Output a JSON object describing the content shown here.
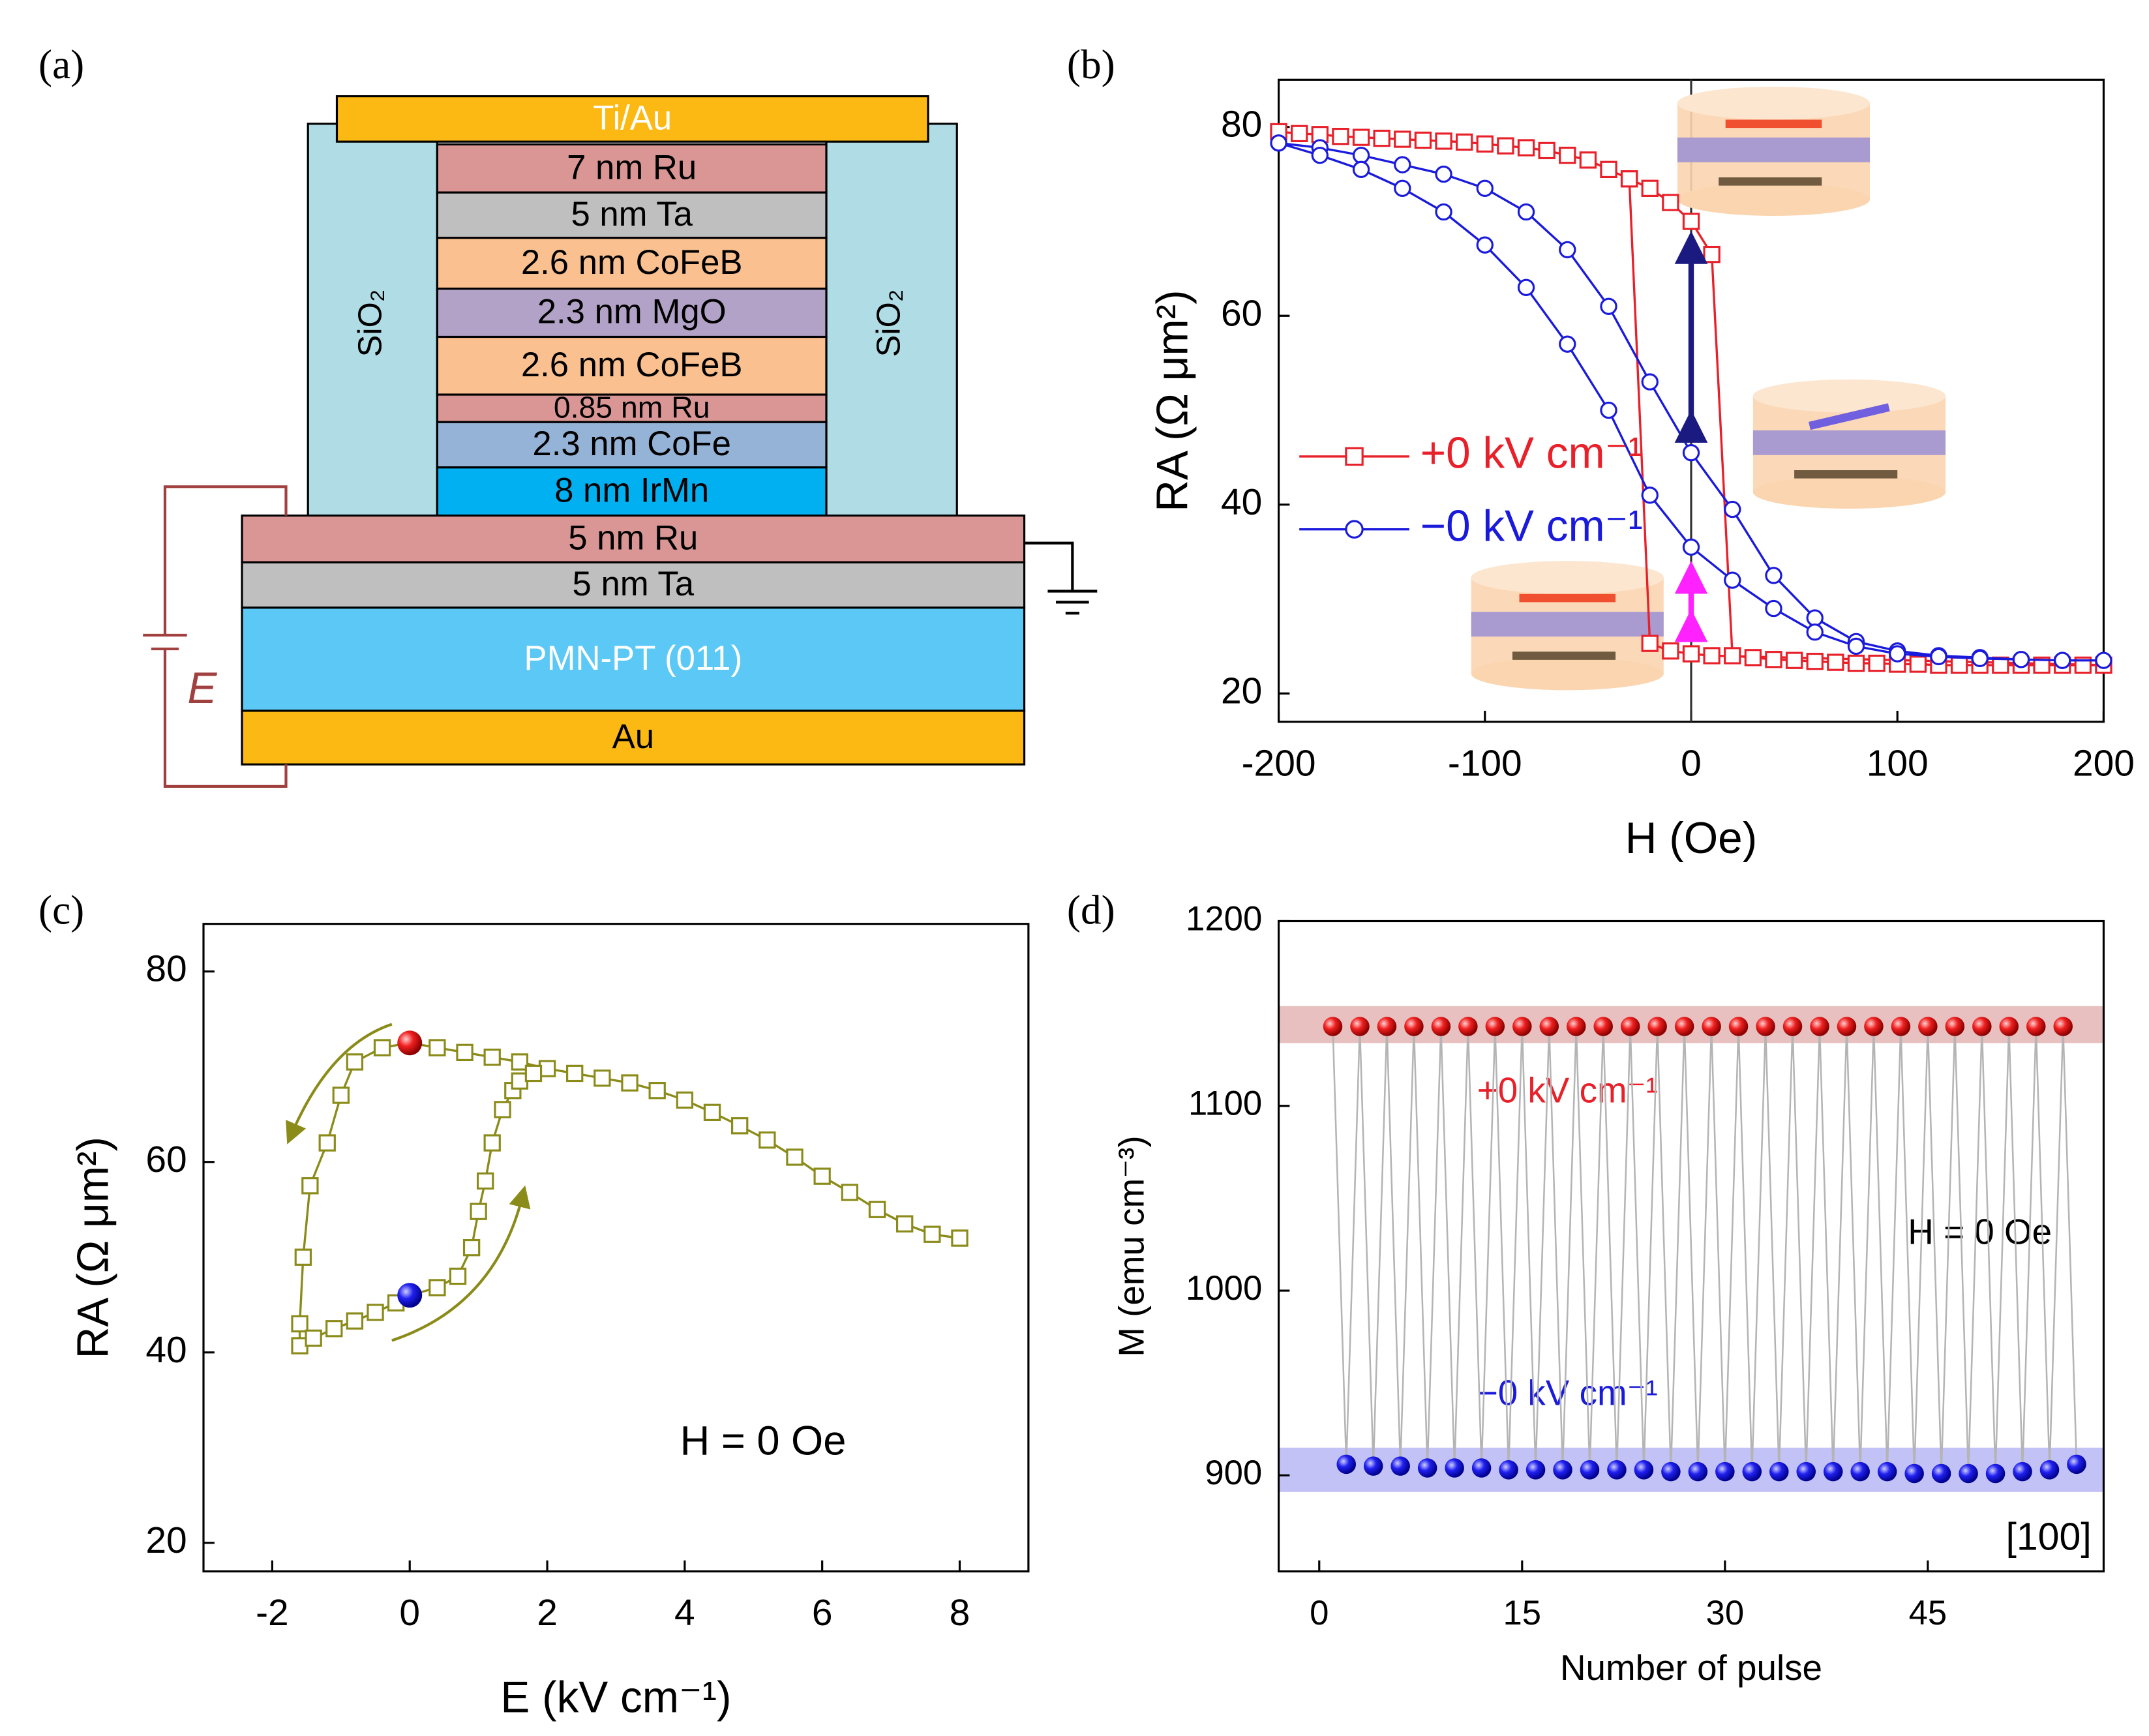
{
  "panel_labels": [
    "(a)",
    "(b)",
    "(c)",
    "(d)"
  ],
  "diagram": {
    "layers": [
      "Ti/Au",
      "7 nm Ru",
      "5 nm Ta",
      "2.6 nm  CoFeB",
      "2.3 nm MgO",
      "2.6 nm  CoFeB",
      "0.85 nm Ru",
      "2.3 nm CoFe",
      "8 nm IrMn",
      "5 nm Ru",
      "5 nm Ta",
      "PMN-PT (011)",
      "Au"
    ],
    "oxide": "SiO₂",
    "voltage_label": "E"
  },
  "chart_data": [
    {
      "type": "line",
      "xlabel": "H (Oe)",
      "ylabel": "RA (Ω μm²)",
      "xlim": [
        -200,
        200
      ],
      "ylim": [
        17,
        85
      ],
      "xticks": [
        -200,
        -100,
        0,
        100,
        200
      ],
      "yticks": [
        20,
        40,
        60,
        80
      ],
      "reference_line_x": 0,
      "legend": "center left",
      "series": [
        {
          "name": "+0 kV cm⁻¹",
          "color": "#e8202a",
          "marker": "square",
          "x": [
            -200,
            -190,
            -180,
            -170,
            -160,
            -150,
            -140,
            -130,
            -120,
            -110,
            -100,
            -90,
            -80,
            -70,
            -60,
            -50,
            -40,
            -30,
            -20,
            -10,
            0,
            10,
            20,
            30,
            40,
            50,
            60,
            70,
            80,
            90,
            100,
            110,
            120,
            130,
            140,
            150,
            160,
            170,
            180,
            190,
            200,
            10,
            0,
            -10,
            -20,
            -30
          ],
          "values": [
            79.5,
            79.3,
            79.2,
            79,
            78.9,
            78.8,
            78.7,
            78.6,
            78.5,
            78.4,
            78.2,
            78,
            77.8,
            77.5,
            77,
            76.5,
            75.5,
            74.5,
            73.5,
            72,
            70,
            66.5,
            24,
            23.8,
            23.6,
            23.5,
            23.4,
            23.3,
            23.2,
            23.2,
            23.1,
            23.1,
            23,
            23,
            23,
            23,
            23,
            23,
            23,
            23,
            23,
            24,
            24.2,
            24.5,
            25.3,
            74.5
          ]
        },
        {
          "name": "−0 kV cm⁻¹",
          "color": "#1a1adc",
          "marker": "circle",
          "x": [
            -200,
            -180,
            -160,
            -140,
            -120,
            -100,
            -80,
            -60,
            -40,
            -20,
            0,
            20,
            40,
            60,
            80,
            100,
            120,
            140,
            160,
            180,
            200,
            180,
            160,
            140,
            120,
            100,
            80,
            60,
            40,
            20,
            0,
            -20,
            -40,
            -60,
            -80,
            -100,
            -120,
            -140,
            -160,
            -180,
            -200
          ],
          "values": [
            78.3,
            77.8,
            77,
            76,
            75,
            73.5,
            71,
            67,
            61,
            53,
            45.5,
            39.5,
            32.5,
            28,
            25.5,
            24.5,
            24,
            23.8,
            23.6,
            23.5,
            23.5,
            23.5,
            23.6,
            23.7,
            23.9,
            24.2,
            25,
            26.5,
            29,
            32,
            35.5,
            41,
            50,
            57,
            63,
            67.5,
            71,
            73.5,
            75.5,
            77,
            78.3
          ]
        }
      ]
    },
    {
      "type": "line",
      "xlabel": "E (kV cm⁻¹)",
      "ylabel": "RA (Ω μm²)",
      "xlim": [
        -3,
        9
      ],
      "ylim": [
        17,
        85
      ],
      "xticks": [
        -2,
        0,
        2,
        4,
        6,
        8
      ],
      "yticks": [
        20,
        40,
        60,
        80
      ],
      "annotations": [
        {
          "text": "H = 0 Oe",
          "color": "#000000"
        }
      ],
      "series": [
        {
          "color": "#8b8b1a",
          "marker": "square",
          "x": [
            8,
            7.6,
            7.2,
            6.8,
            6.4,
            6,
            5.6,
            5.2,
            4.8,
            4.4,
            4,
            3.6,
            3.2,
            2.8,
            2.4,
            2,
            1.6,
            1.2,
            0.8,
            0.4,
            0,
            -0.4,
            -0.8,
            -1,
            -1.2,
            -1.45,
            -1.55,
            -1.6,
            -1.6,
            -1.4,
            -1.1,
            -0.8,
            -0.5,
            -0.2,
            0,
            0.4,
            0.7,
            0.9,
            1,
            1.1,
            1.2,
            1.35,
            1.5,
            1.6,
            1.8
          ],
          "values": [
            52,
            52.4,
            53.5,
            55,
            56.8,
            58.5,
            60.5,
            62.3,
            63.8,
            65.2,
            66.5,
            67.5,
            68.3,
            68.8,
            69.3,
            69.8,
            70.5,
            71,
            71.5,
            72,
            72.5,
            72,
            70.5,
            67,
            62,
            57.5,
            50,
            43,
            40.7,
            41.5,
            42.5,
            43.3,
            44.2,
            45.2,
            46,
            46.8,
            48,
            51,
            54.8,
            58,
            62,
            65.5,
            67.5,
            68.5,
            69.3
          ]
        },
        {
          "color": "#e8202a",
          "marker": "sphere",
          "x": [
            0
          ],
          "values": [
            72.5
          ]
        },
        {
          "color": "#1a1adc",
          "marker": "sphere",
          "x": [
            0
          ],
          "values": [
            46
          ]
        }
      ]
    },
    {
      "type": "line",
      "xlabel": "Number of pulse",
      "ylabel": "M (emu cm⁻³)",
      "xlim": [
        -3,
        58
      ],
      "ylim": [
        848,
        1200
      ],
      "xticks": [
        0,
        15,
        30,
        45
      ],
      "yticks": [
        900,
        1000,
        1100,
        1200
      ],
      "line_color": "#b4b4b4",
      "bands": [
        {
          "range": [
            1134,
            1154
          ],
          "color": "#d99694"
        },
        {
          "range": [
            891,
            915
          ],
          "color": "#9a9af0"
        }
      ],
      "annotations": [
        {
          "text": "+0 kV cm⁻¹",
          "color": "#e8202a"
        },
        {
          "text": "H = 0 Oe",
          "color": "#000000"
        },
        {
          "text": "−0 kV cm⁻¹",
          "color": "#1a1adc"
        },
        {
          "text": "[100]",
          "color": "#000000"
        }
      ],
      "series": [
        {
          "color": "#e8202a",
          "marker": "sphere",
          "x": [
            1,
            3,
            5,
            7,
            9,
            11,
            13,
            15,
            17,
            19,
            21,
            23,
            25,
            27,
            29,
            31,
            33,
            35,
            37,
            39,
            41,
            43,
            45,
            47,
            49,
            51,
            53,
            55
          ],
          "values": [
            1143,
            1143,
            1143,
            1143,
            1143,
            1143,
            1143,
            1143,
            1143,
            1143,
            1143,
            1143,
            1143,
            1143,
            1143,
            1143,
            1143,
            1143,
            1143,
            1143,
            1143,
            1143,
            1143,
            1143,
            1143,
            1143,
            1143,
            1143
          ]
        },
        {
          "color": "#1a1adc",
          "marker": "sphere",
          "x": [
            2,
            4,
            6,
            8,
            10,
            12,
            14,
            16,
            18,
            20,
            22,
            24,
            26,
            28,
            30,
            32,
            34,
            36,
            38,
            40,
            42,
            44,
            46,
            48,
            50,
            52,
            54,
            56
          ],
          "values": [
            906,
            905,
            905,
            904,
            904,
            904,
            903,
            903,
            903,
            903,
            903,
            903,
            902,
            902,
            902,
            902,
            902,
            902,
            902,
            902,
            902,
            901,
            901,
            901,
            901,
            902,
            903,
            906
          ]
        }
      ]
    }
  ]
}
